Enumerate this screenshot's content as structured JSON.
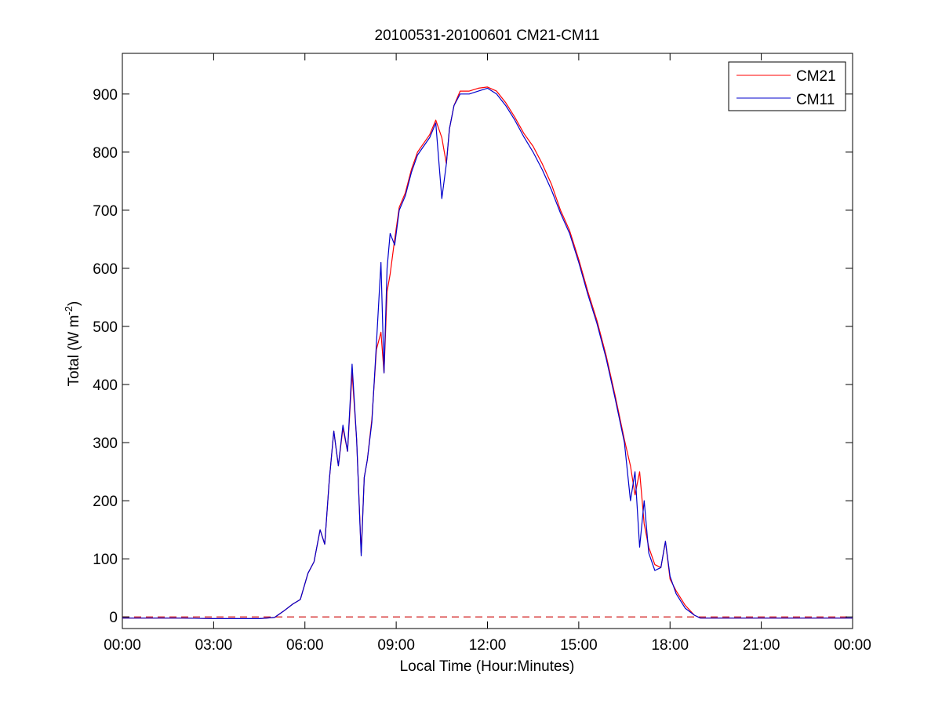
{
  "chart_data": {
    "type": "line",
    "title": "20100531-20100601 CM21-CM11",
    "xlabel": "Local Time (Hour:Minutes)",
    "ylabel": {
      "prefix": "Total (W m",
      "superscript": "-2",
      "suffix": ")"
    },
    "xlim_hours": [
      0,
      24
    ],
    "ylim": [
      -20,
      970
    ],
    "x_ticks": [
      {
        "hour": 0,
        "label": "00:00"
      },
      {
        "hour": 3,
        "label": "03:00"
      },
      {
        "hour": 6,
        "label": "06:00"
      },
      {
        "hour": 9,
        "label": "09:00"
      },
      {
        "hour": 12,
        "label": "12:00"
      },
      {
        "hour": 15,
        "label": "15:00"
      },
      {
        "hour": 18,
        "label": "18:00"
      },
      {
        "hour": 21,
        "label": "21:00"
      },
      {
        "hour": 24,
        "label": "00:00"
      }
    ],
    "y_ticks": [
      0,
      100,
      200,
      300,
      400,
      500,
      600,
      700,
      800,
      900
    ],
    "grid": false,
    "legend_position": "top-right",
    "zero_line": {
      "value": 0,
      "style": "dashed",
      "color": "#cc0000"
    },
    "series": [
      {
        "name": "CM21",
        "color": "#ff0000",
        "x_hours": [
          0,
          1,
          2,
          3,
          4,
          4.5,
          5,
          5.3,
          5.6,
          5.85,
          6.1,
          6.3,
          6.5,
          6.65,
          6.8,
          6.95,
          7.1,
          7.25,
          7.4,
          7.55,
          7.7,
          7.85,
          7.95,
          8.05,
          8.2,
          8.35,
          8.5,
          8.6,
          8.7,
          8.8,
          8.95,
          9.1,
          9.3,
          9.5,
          9.7,
          9.9,
          10.1,
          10.3,
          10.5,
          10.65,
          10.75,
          10.9,
          11.1,
          11.4,
          11.7,
          12,
          12.3,
          12.6,
          12.9,
          13.2,
          13.5,
          13.8,
          14.1,
          14.4,
          14.7,
          15,
          15.3,
          15.6,
          15.9,
          16.2,
          16.5,
          16.7,
          16.85,
          17,
          17.15,
          17.3,
          17.5,
          17.7,
          17.85,
          18,
          18.2,
          18.5,
          18.8,
          19,
          20,
          21,
          22,
          23,
          24
        ],
        "values": [
          -2,
          -2,
          -2,
          -3,
          -3,
          -3,
          -1,
          10,
          22,
          30,
          75,
          95,
          150,
          125,
          235,
          320,
          260,
          325,
          285,
          420,
          305,
          110,
          240,
          270,
          340,
          460,
          490,
          420,
          560,
          590,
          650,
          705,
          730,
          770,
          800,
          815,
          830,
          855,
          825,
          780,
          840,
          880,
          905,
          905,
          910,
          912,
          905,
          885,
          860,
          832,
          810,
          780,
          745,
          700,
          665,
          615,
          560,
          510,
          450,
          380,
          305,
          260,
          210,
          250,
          160,
          120,
          90,
          85,
          130,
          65,
          45,
          20,
          3,
          -2,
          -2,
          -2,
          -2,
          -2,
          -2
        ]
      },
      {
        "name": "CM11",
        "color": "#0000cc",
        "x_hours": [
          0,
          1,
          2,
          3,
          4,
          4.5,
          5,
          5.3,
          5.6,
          5.85,
          6.1,
          6.3,
          6.5,
          6.65,
          6.8,
          6.95,
          7.1,
          7.25,
          7.4,
          7.55,
          7.7,
          7.85,
          7.95,
          8.05,
          8.2,
          8.35,
          8.5,
          8.6,
          8.7,
          8.8,
          8.95,
          9.1,
          9.3,
          9.5,
          9.7,
          9.9,
          10.1,
          10.3,
          10.5,
          10.65,
          10.75,
          10.9,
          11.1,
          11.4,
          11.7,
          12,
          12.3,
          12.6,
          12.9,
          13.2,
          13.5,
          13.8,
          14.1,
          14.4,
          14.7,
          15,
          15.3,
          15.6,
          15.9,
          16.2,
          16.5,
          16.7,
          16.85,
          17,
          17.15,
          17.3,
          17.5,
          17.7,
          17.85,
          18,
          18.2,
          18.5,
          18.8,
          19,
          20,
          21,
          22,
          23,
          24
        ],
        "values": [
          -2,
          -2,
          -2,
          -3,
          -3,
          -3,
          -1,
          10,
          22,
          30,
          75,
          95,
          150,
          125,
          235,
          320,
          260,
          330,
          285,
          435,
          305,
          105,
          240,
          270,
          335,
          470,
          610,
          420,
          600,
          660,
          640,
          700,
          725,
          765,
          795,
          810,
          825,
          850,
          720,
          780,
          840,
          880,
          900,
          900,
          905,
          910,
          900,
          880,
          855,
          826,
          800,
          770,
          735,
          695,
          660,
          610,
          555,
          505,
          445,
          375,
          300,
          200,
          250,
          120,
          200,
          110,
          80,
          85,
          130,
          70,
          40,
          15,
          3,
          -2,
          -2,
          -2,
          -2,
          -2,
          -2
        ]
      }
    ]
  }
}
